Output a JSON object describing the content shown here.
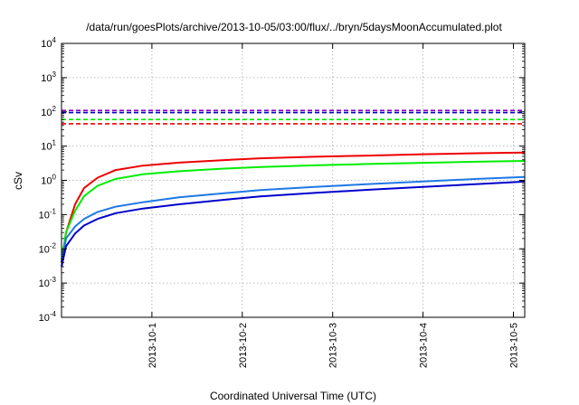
{
  "chart_data": {
    "type": "line",
    "title": "/data/run/goesPlots/archive/2013-10-05/03:00/flux/../bryn/5daysMoonAccumulated.plot",
    "xlabel": "Coordinated Universal Time (UTC)",
    "ylabel": "cSv",
    "x_unit": "days",
    "xlim": [
      "2013-09-30T00:00",
      "2013-10-05T03:00"
    ],
    "ylim": [
      0.0001,
      10000
    ],
    "yscale": "log",
    "grid": true,
    "x_ticks": [
      {
        "label": "2013-10-1",
        "value": "2013-10-01T00:00"
      },
      {
        "label": "2013-10-2",
        "value": "2013-10-02T00:00"
      },
      {
        "label": "2013-10-3",
        "value": "2013-10-03T00:00"
      },
      {
        "label": "2013-10-4",
        "value": "2013-10-04T00:00"
      },
      {
        "label": "2013-10-5",
        "value": "2013-10-05T00:00"
      }
    ],
    "y_ticks": [
      {
        "base": "10",
        "exp": "-4",
        "value": 0.0001
      },
      {
        "base": "10",
        "exp": "-3",
        "value": 0.001
      },
      {
        "base": "10",
        "exp": "-2",
        "value": 0.01
      },
      {
        "base": "10",
        "exp": "-1",
        "value": 0.1
      },
      {
        "base": "10",
        "exp": "0",
        "value": 1
      },
      {
        "base": "10",
        "exp": "1",
        "value": 10
      },
      {
        "base": "10",
        "exp": "2",
        "value": 100
      },
      {
        "base": "10",
        "exp": "3",
        "value": 1000
      },
      {
        "base": "10",
        "exp": "4",
        "value": 10000
      }
    ],
    "series": [
      {
        "style": "solid",
        "color": "#ee0000",
        "points": [
          [
            "2013-09-30T00:00",
            0.004
          ],
          [
            "2013-09-30T01:12",
            0.03
          ],
          [
            "2013-09-30T03:36",
            0.2
          ],
          [
            "2013-09-30T06:00",
            0.6
          ],
          [
            "2013-09-30T09:36",
            1.2
          ],
          [
            "2013-09-30T14:24",
            2.0
          ],
          [
            "2013-09-30T21:36",
            2.7
          ],
          [
            "2013-10-01T07:12",
            3.3
          ],
          [
            "2013-10-01T19:12",
            3.9
          ],
          [
            "2013-10-02T04:48",
            4.4
          ],
          [
            "2013-10-02T19:12",
            4.9
          ],
          [
            "2013-10-03T09:36",
            5.3
          ],
          [
            "2013-10-04T00:00",
            5.8
          ],
          [
            "2013-10-04T14:24",
            6.2
          ],
          [
            "2013-10-05T03:00",
            6.5
          ]
        ]
      },
      {
        "style": "solid",
        "color": "#00ee00",
        "points": [
          [
            "2013-09-30T00:00",
            0.005
          ],
          [
            "2013-09-30T01:12",
            0.03
          ],
          [
            "2013-09-30T03:36",
            0.13
          ],
          [
            "2013-09-30T06:00",
            0.35
          ],
          [
            "2013-09-30T09:36",
            0.7
          ],
          [
            "2013-09-30T14:24",
            1.1
          ],
          [
            "2013-09-30T21:36",
            1.5
          ],
          [
            "2013-10-01T07:12",
            1.85
          ],
          [
            "2013-10-01T19:12",
            2.2
          ],
          [
            "2013-10-02T04:48",
            2.45
          ],
          [
            "2013-10-02T19:12",
            2.75
          ],
          [
            "2013-10-03T09:36",
            3.0
          ],
          [
            "2013-10-04T00:00",
            3.25
          ],
          [
            "2013-10-04T14:24",
            3.5
          ],
          [
            "2013-10-05T03:00",
            3.7
          ]
        ]
      },
      {
        "style": "solid",
        "color": "#1e78e6",
        "points": [
          [
            "2013-09-30T00:00",
            0.004
          ],
          [
            "2013-09-30T01:12",
            0.02
          ],
          [
            "2013-09-30T03:36",
            0.045
          ],
          [
            "2013-09-30T06:00",
            0.075
          ],
          [
            "2013-09-30T09:36",
            0.12
          ],
          [
            "2013-09-30T14:24",
            0.17
          ],
          [
            "2013-09-30T21:36",
            0.23
          ],
          [
            "2013-10-01T07:12",
            0.32
          ],
          [
            "2013-10-01T19:12",
            0.42
          ],
          [
            "2013-10-02T04:48",
            0.52
          ],
          [
            "2013-10-02T19:12",
            0.64
          ],
          [
            "2013-10-03T09:36",
            0.78
          ],
          [
            "2013-10-04T00:00",
            0.93
          ],
          [
            "2013-10-04T14:24",
            1.1
          ],
          [
            "2013-10-05T03:00",
            1.25
          ]
        ]
      },
      {
        "style": "solid",
        "color": "#0000cc",
        "points": [
          [
            "2013-09-30T00:00",
            0.003
          ],
          [
            "2013-09-30T01:12",
            0.012
          ],
          [
            "2013-09-30T03:36",
            0.028
          ],
          [
            "2013-09-30T06:00",
            0.048
          ],
          [
            "2013-09-30T09:36",
            0.075
          ],
          [
            "2013-09-30T14:24",
            0.11
          ],
          [
            "2013-09-30T21:36",
            0.15
          ],
          [
            "2013-10-01T07:12",
            0.2
          ],
          [
            "2013-10-01T19:12",
            0.27
          ],
          [
            "2013-10-02T04:48",
            0.34
          ],
          [
            "2013-10-02T19:12",
            0.43
          ],
          [
            "2013-10-03T09:36",
            0.53
          ],
          [
            "2013-10-04T00:00",
            0.64
          ],
          [
            "2013-10-04T14:24",
            0.78
          ],
          [
            "2013-10-05T03:00",
            0.92
          ]
        ]
      },
      {
        "style": "dashed",
        "color": "#8800cc",
        "points": [
          [
            "2013-09-30T00:00",
            110
          ],
          [
            "2013-10-05T03:00",
            110
          ]
        ]
      },
      {
        "style": "dashed",
        "color": "#0000cc",
        "points": [
          [
            "2013-09-30T00:00",
            95
          ],
          [
            "2013-10-05T03:00",
            95
          ]
        ]
      },
      {
        "style": "dashed",
        "color": "#00ee00",
        "points": [
          [
            "2013-09-30T00:00",
            60
          ],
          [
            "2013-10-05T03:00",
            60
          ]
        ]
      },
      {
        "style": "dashed",
        "color": "#ee0000",
        "points": [
          [
            "2013-09-30T00:00",
            45
          ],
          [
            "2013-10-05T03:00",
            45
          ]
        ]
      }
    ]
  }
}
